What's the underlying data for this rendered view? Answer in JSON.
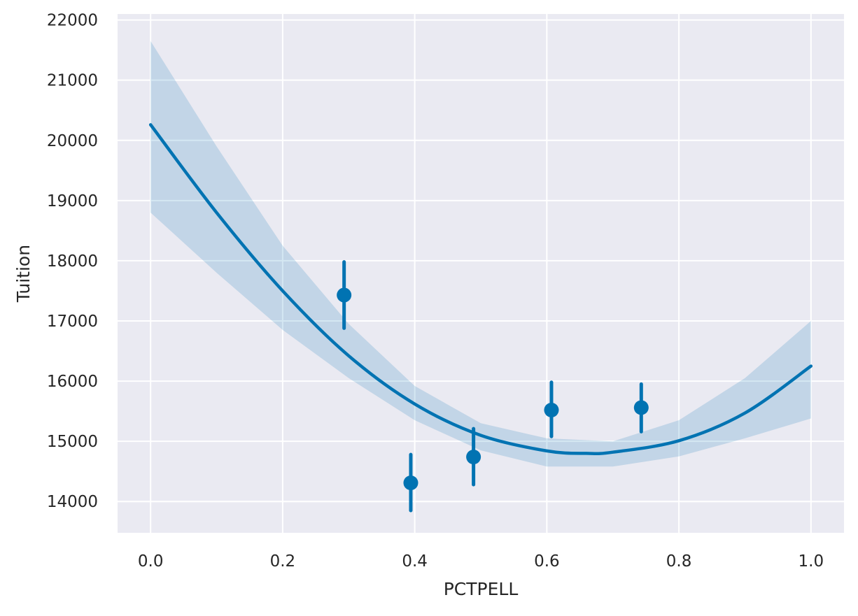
{
  "chart_data": {
    "type": "scatter",
    "title": "",
    "xlabel": "PCTPELL",
    "ylabel": "Tuition",
    "xlim": [
      -0.05,
      1.05
    ],
    "ylim": [
      13480,
      22100
    ],
    "x_ticks": [
      0.0,
      0.2,
      0.4,
      0.6,
      0.8,
      1.0
    ],
    "x_tick_labels": [
      "0.0",
      "0.2",
      "0.4",
      "0.6",
      "0.8",
      "1.0"
    ],
    "y_ticks": [
      14000,
      15000,
      16000,
      17000,
      18000,
      19000,
      20000,
      21000,
      22000
    ],
    "y_tick_labels": [
      "14000",
      "15000",
      "16000",
      "17000",
      "18000",
      "19000",
      "20000",
      "21000",
      "22000"
    ],
    "grid": true,
    "legend": false,
    "colors": {
      "background": "#eaeaf2",
      "grid": "#ffffff",
      "series": "#0173b2",
      "band": "#0173b2"
    },
    "points": [
      {
        "x": 0.293,
        "y": 17430,
        "err_low": 16880,
        "err_high": 17980
      },
      {
        "x": 0.394,
        "y": 14310,
        "err_low": 13850,
        "err_high": 14780
      },
      {
        "x": 0.489,
        "y": 14740,
        "err_low": 14280,
        "err_high": 15210
      },
      {
        "x": 0.607,
        "y": 15520,
        "err_low": 15080,
        "err_high": 15980
      },
      {
        "x": 0.743,
        "y": 15560,
        "err_low": 15160,
        "err_high": 15950
      }
    ],
    "fit_line": {
      "x": [
        0.0,
        0.1,
        0.2,
        0.3,
        0.4,
        0.5,
        0.6,
        0.66,
        0.7,
        0.8,
        0.9,
        1.0
      ],
      "y": [
        20260,
        18800,
        17500,
        16420,
        15620,
        15100,
        14840,
        14800,
        14820,
        15010,
        15470,
        16250
      ]
    },
    "confidence_band": {
      "x": [
        0.0,
        0.1,
        0.2,
        0.3,
        0.4,
        0.5,
        0.6,
        0.7,
        0.8,
        0.9,
        1.0
      ],
      "upper": [
        21650,
        19900,
        18250,
        16950,
        15920,
        15300,
        15050,
        15000,
        15350,
        16050,
        17000
      ],
      "lower": [
        18800,
        17800,
        16850,
        16050,
        15350,
        14850,
        14580,
        14580,
        14750,
        15050,
        15380
      ]
    }
  }
}
